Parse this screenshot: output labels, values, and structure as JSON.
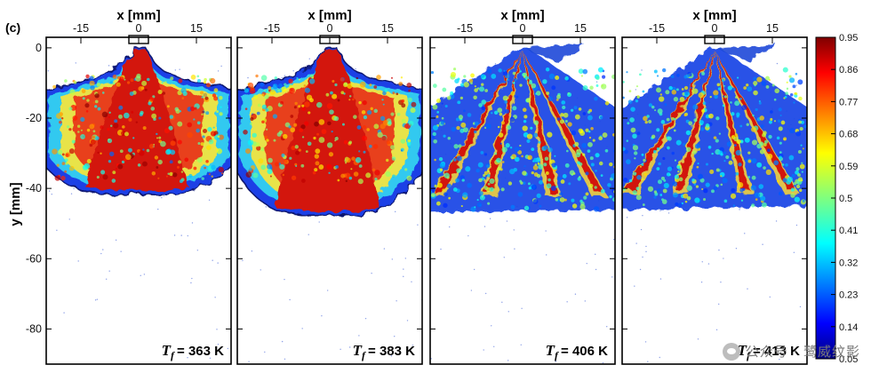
{
  "figure_label": "(c)",
  "watermark": "公众号 · 鹭威纹影",
  "chart_data": {
    "type": "heatmap",
    "xlabel": "x [mm]",
    "ylabel": "y [mm]",
    "x_ticks": [
      "-15",
      "0",
      "15"
    ],
    "y_ticks": [
      "0",
      "-20",
      "-40",
      "-60",
      "-80"
    ],
    "x_tick_values": [
      -15,
      0,
      15
    ],
    "y_tick_values": [
      0,
      -20,
      -40,
      -60,
      -80
    ],
    "xlim": [
      -24,
      24
    ],
    "ylim": [
      -90,
      3
    ],
    "colorbar": {
      "ticks": [
        "0.95",
        "0.86",
        "0.77",
        "0.68",
        "0.59",
        "0.5",
        "0.41",
        "0.32",
        "0.23",
        "0.14",
        "0.05"
      ],
      "range": [
        0.05,
        0.95
      ],
      "colormap": "jet"
    },
    "panels": [
      {
        "label_symbol": "T",
        "label_sub": "f",
        "label_value": "= 363 K",
        "pattern": "collapsed",
        "spray_depth": -41
      },
      {
        "label_symbol": "T",
        "label_sub": "f",
        "label_value": "= 383 K",
        "pattern": "collapsed",
        "spray_depth": -47
      },
      {
        "label_symbol": "T",
        "label_sub": "f",
        "label_value": "= 406 K",
        "pattern": "plumes",
        "spray_depth": -46
      },
      {
        "label_symbol": "T",
        "label_sub": "f",
        "label_value": "= 413 K",
        "pattern": "plumes",
        "spray_depth": -45
      }
    ]
  }
}
